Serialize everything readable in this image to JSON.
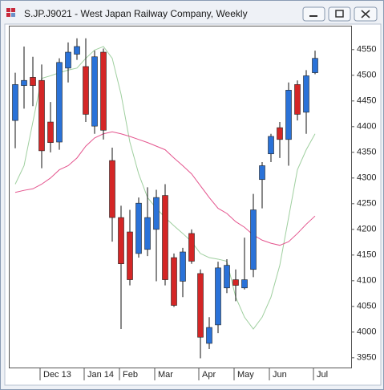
{
  "chart_data": {
    "type": "candlestick",
    "title": "S.JP.J9021 - West Japan Railway Company, Weekly",
    "categories": [
      null,
      null,
      null,
      "Dec 13",
      null,
      null,
      null,
      null,
      "Jan 14",
      null,
      null,
      null,
      "Feb",
      null,
      null,
      null,
      "Mar",
      null,
      null,
      null,
      null,
      "Apr",
      null,
      null,
      null,
      "May",
      null,
      null,
      null,
      "Jun",
      null,
      null,
      null,
      null,
      "Jul"
    ],
    "open": [
      4412,
      4480,
      4496,
      4490,
      4409,
      4370,
      4514,
      4541,
      4517,
      4401,
      4545,
      4334,
      4223,
      4195,
      4153,
      4161,
      4200,
      4266,
      4145,
      4099,
      4192,
      4114,
      3978,
      4014,
      4086,
      4102,
      4086,
      4122,
      4297,
      4347,
      4398,
      4375,
      4482,
      4428,
      4505
    ],
    "high": [
      4505,
      4556,
      4536,
      4521,
      4448,
      4533,
      4564,
      4572,
      4572,
      4548,
      4552,
      4359,
      4246,
      4238,
      4262,
      4282,
      4277,
      4288,
      4153,
      4164,
      4200,
      4122,
      4029,
      4137,
      4142,
      4122,
      4184,
      4269,
      4331,
      4386,
      4409,
      4486,
      4490,
      4510,
      4548
    ],
    "low": [
      4358,
      4435,
      4440,
      4319,
      4350,
      4355,
      4486,
      4530,
      4409,
      4386,
      4375,
      4176,
      4006,
      4091,
      4145,
      4148,
      4099,
      4091,
      4049,
      4068,
      4133,
      3949,
      3967,
      3998,
      4076,
      4060,
      4083,
      4107,
      4241,
      4331,
      4339,
      4324,
      4412,
      4386,
      4502
    ],
    "close": [
      4482,
      4490,
      4480,
      4353,
      4369,
      4525,
      4545,
      4556,
      4424,
      4536,
      4393,
      4223,
      4133,
      4102,
      4251,
      4223,
      4262,
      4102,
      4052,
      4156,
      4138,
      3990,
      4009,
      4125,
      4130,
      4091,
      4102,
      4238,
      4324,
      4381,
      4375,
      4471,
      4424,
      4499,
      4533
    ],
    "up_color": "#2a72d8",
    "down_color": "#d42626",
    "overlays": [
      {
        "color": "#9fcf9f",
        "values": [
          4288,
          4324,
          4409,
          4494,
          4499,
          4505,
          4510,
          4514,
          4533,
          4549,
          4556,
          4533,
          4463,
          4370,
          4308,
          4262,
          4241,
          4223,
          4207,
          4192,
          4176,
          4153,
          4145,
          4142,
          4138,
          4068,
          4029,
          4006,
          4029,
          4068,
          4130,
          4223,
          4316,
          4355,
          4386
        ]
      },
      {
        "color": "#e4558e",
        "values": [
          4272,
          4276,
          4279,
          4288,
          4300,
          4316,
          4324,
          4339,
          4362,
          4378,
          4386,
          4390,
          4386,
          4381,
          4375,
          4369,
          4362,
          4355,
          4339,
          4324,
          4308,
          4285,
          4262,
          4241,
          4231,
          4215,
          4204,
          4189,
          4179,
          4173,
          4169,
          4176,
          4192,
          4210,
          4226
        ]
      }
    ],
    "ylim": [
      3931,
      4595
    ],
    "yticks": [
      3950,
      4000,
      4050,
      4100,
      4150,
      4200,
      4250,
      4300,
      4350,
      4400,
      4450,
      4500,
      4550
    ]
  }
}
